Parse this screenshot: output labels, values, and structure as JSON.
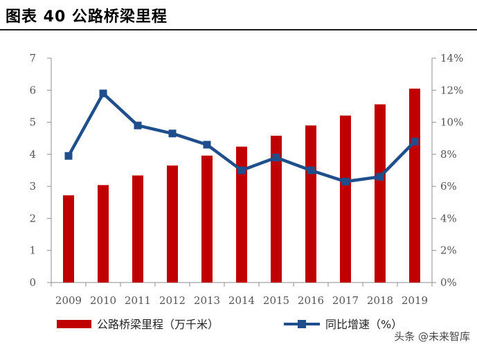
{
  "header": {
    "title": "图表 40  公路桥梁里程"
  },
  "watermark": "头条 @未来智库",
  "chart_data": {
    "type": "bar",
    "title": "",
    "categories": [
      "2009",
      "2010",
      "2011",
      "2012",
      "2013",
      "2014",
      "2015",
      "2016",
      "2017",
      "2018",
      "2019"
    ],
    "series": [
      {
        "name": "公路桥梁里程（万千米）",
        "type": "bar",
        "axis": "left",
        "color": "#C00000",
        "values": [
          2.72,
          3.04,
          3.34,
          3.65,
          3.96,
          4.24,
          4.58,
          4.9,
          5.21,
          5.56,
          6.05
        ]
      },
      {
        "name": "同比增速（%）",
        "type": "line",
        "axis": "right",
        "color": "#1F4E8C",
        "values": [
          7.9,
          11.8,
          9.8,
          9.3,
          8.6,
          7.0,
          7.8,
          7.0,
          6.3,
          6.6,
          8.8
        ]
      }
    ],
    "y_left": {
      "min": 0,
      "max": 7,
      "ticks": [
        "0",
        "1",
        "2",
        "3",
        "4",
        "5",
        "6",
        "7"
      ]
    },
    "y_right": {
      "min": 0,
      "max": 14,
      "ticks": [
        "0%",
        "2%",
        "4%",
        "6%",
        "8%",
        "10%",
        "12%",
        "14%"
      ]
    },
    "grid": false,
    "legend_position": "bottom"
  }
}
